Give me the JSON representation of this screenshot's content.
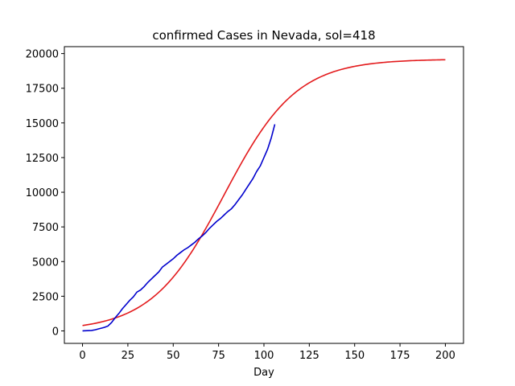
{
  "chart_data": {
    "type": "line",
    "title": "confirmed Cases in Nevada, sol=418",
    "xlabel": "Day",
    "ylabel": "",
    "xlim": [
      -10,
      210
    ],
    "ylim": [
      -900,
      20500
    ],
    "xticks": [
      0,
      25,
      50,
      75,
      100,
      125,
      150,
      175,
      200
    ],
    "yticks": [
      0,
      2500,
      5000,
      7500,
      10000,
      12500,
      15000,
      17500,
      20000
    ],
    "grid": false,
    "series": [
      {
        "color": "#0000cd",
        "x": [
          0,
          5,
          7,
          9,
          12,
          14,
          16,
          18,
          20,
          22,
          24,
          26,
          28,
          30,
          32,
          34,
          36,
          38,
          40,
          42,
          44,
          46,
          48,
          50,
          52,
          54,
          56,
          58,
          60,
          62,
          64,
          66,
          68,
          70,
          72,
          74,
          76,
          78,
          80,
          82,
          84,
          86,
          88,
          90,
          92,
          94,
          96,
          98,
          100,
          102,
          104,
          106
        ],
        "y": [
          0,
          30,
          80,
          150,
          250,
          350,
          600,
          950,
          1250,
          1600,
          1900,
          2200,
          2450,
          2800,
          2950,
          3200,
          3500,
          3750,
          4000,
          4250,
          4600,
          4800,
          5000,
          5200,
          5450,
          5650,
          5850,
          6000,
          6200,
          6400,
          6650,
          6850,
          7100,
          7400,
          7650,
          7900,
          8100,
          8350,
          8600,
          8800,
          9100,
          9450,
          9800,
          10200,
          10600,
          11000,
          11500,
          11900,
          12500,
          13100,
          13900,
          14900
        ]
      },
      {
        "color": "#e31a1c",
        "fit": {
          "K": 19600,
          "r": 0.05,
          "x0": 78
        }
      }
    ]
  }
}
